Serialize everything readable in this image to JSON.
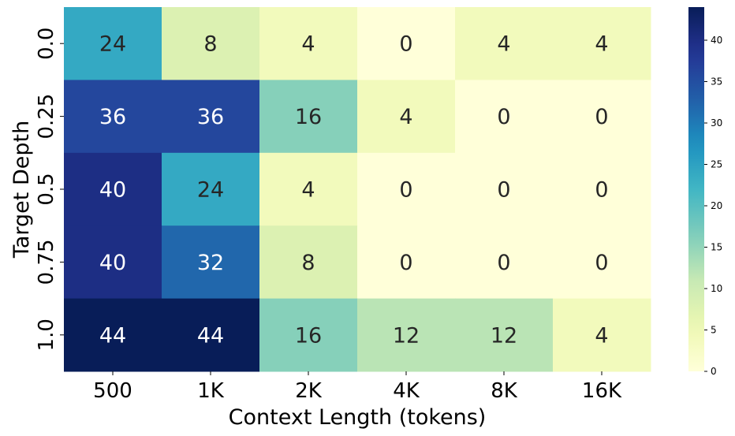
{
  "chart_data": {
    "type": "heatmap",
    "xlabel": "Context Length (tokens)",
    "ylabel": "Target Depth",
    "x_categories": [
      "500",
      "1K",
      "2K",
      "4K",
      "8K",
      "16K"
    ],
    "y_categories": [
      "0.0",
      "0.25",
      "0.5",
      "0.75",
      "1.0"
    ],
    "values": [
      [
        24,
        8,
        4,
        0,
        4,
        4
      ],
      [
        36,
        36,
        16,
        4,
        0,
        0
      ],
      [
        40,
        24,
        4,
        0,
        0,
        0
      ],
      [
        40,
        32,
        8,
        0,
        0,
        0
      ],
      [
        44,
        44,
        16,
        12,
        12,
        4
      ]
    ],
    "colormap": "YlGnBu",
    "vmin": 0,
    "vmax": 44,
    "colorbar_ticks": [
      0,
      5,
      10,
      15,
      20,
      25,
      30,
      35,
      40
    ],
    "annotations": true,
    "grid": false,
    "legend": "colorbar-right"
  }
}
